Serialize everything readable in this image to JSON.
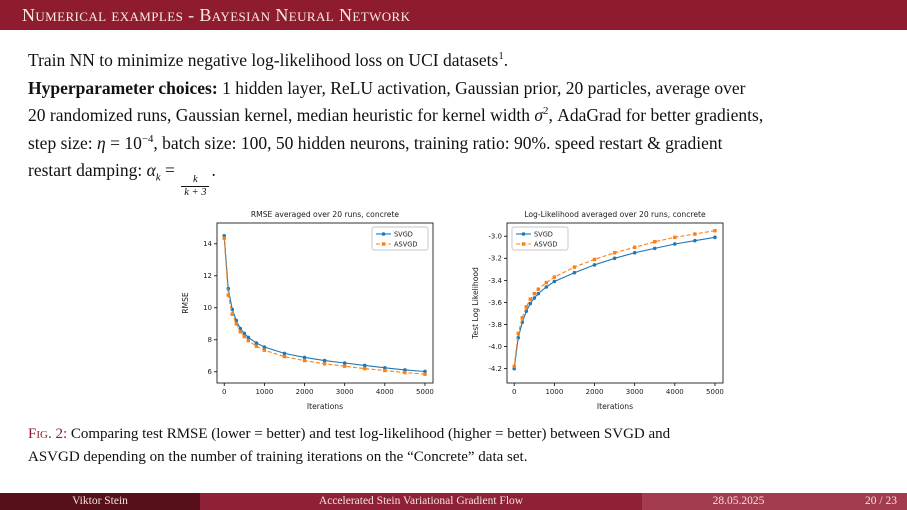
{
  "colors": {
    "structure": "#8e1c2e",
    "footer_author_bg": "#571019",
    "footer_title_bg": "#8e2136",
    "footer_date_bg": "#a33c4e",
    "svgd": "#1f77b4",
    "asvgd": "#ff7f0e"
  },
  "header": {
    "title": "Numerical examples - Bayesian Neural Network"
  },
  "body": {
    "line1": {
      "pre": "Train NN to minimize negative log-likelihood loss on UCI datasets",
      "sup": "1",
      "post": "."
    },
    "hyper": {
      "bold": "Hyperparameter choices:",
      "l1_rest": " 1 hidden layer, ReLU activation, Gaussian prior, 20 particles, average over",
      "l2_pre": "20 randomized runs, Gaussian kernel, median heuristic for kernel width ",
      "l2_sym": "σ",
      "l2_sup": "2",
      "l2_post": ", AdaGrad for better gradients,",
      "l3_pre": "step size: ",
      "l3_sym": "η",
      "l3_mid": " = 10",
      "l3_sup": "−4",
      "l3_post": ", batch size: 100, 50 hidden neurons, training ratio: 90%. speed restart & gradient",
      "l4_pre": "restart damping: ",
      "l4_sym": "α",
      "l4_sub": "k",
      "l4_eq": " = ",
      "frac_num": "k",
      "frac_den": "k + 3",
      "l4_post": "."
    }
  },
  "chart_data": [
    {
      "type": "line",
      "title": "RMSE averaged over 20 runs, concrete",
      "xlabel": "Iterations",
      "ylabel": "RMSE",
      "legend": "top-right",
      "grid": false,
      "xlim": [
        -180,
        5200
      ],
      "ylim": [
        5.3,
        15.3
      ],
      "xticks": [
        "0",
        "1000",
        "2000",
        "3000",
        "4000",
        "5000"
      ],
      "yticks": [
        "6",
        "8",
        "10",
        "12",
        "14"
      ],
      "x": [
        0,
        100,
        200,
        300,
        400,
        500,
        600,
        800,
        1000,
        1500,
        2000,
        2500,
        3000,
        3500,
        4000,
        4500,
        5000
      ],
      "series": [
        {
          "name": "SVGD",
          "color": "#1f77b4",
          "dash": false,
          "marker": "o",
          "values": [
            14.5,
            11.2,
            9.9,
            9.2,
            8.7,
            8.4,
            8.15,
            7.8,
            7.55,
            7.15,
            6.9,
            6.7,
            6.55,
            6.4,
            6.25,
            6.12,
            6.02
          ]
        },
        {
          "name": "ASVGD",
          "color": "#ff7f0e",
          "dash": true,
          "marker": "s",
          "values": [
            14.35,
            10.8,
            9.6,
            9.0,
            8.5,
            8.2,
            7.95,
            7.6,
            7.35,
            6.95,
            6.7,
            6.5,
            6.35,
            6.2,
            6.08,
            5.95,
            5.85
          ]
        }
      ]
    },
    {
      "type": "line",
      "title": "Log-Likelihood averaged over 20 runs, concrete",
      "xlabel": "Iterations",
      "ylabel": "Test Log Likelihood",
      "legend": "top-left",
      "grid": false,
      "xlim": [
        -180,
        5200
      ],
      "ylim": [
        -4.33,
        -2.88
      ],
      "xticks": [
        "0",
        "1000",
        "2000",
        "3000",
        "4000",
        "5000"
      ],
      "yticks": [
        "-4.2",
        "-4.0",
        "-3.8",
        "-3.6",
        "-3.4",
        "-3.2",
        "-3.0"
      ],
      "x": [
        0,
        100,
        200,
        300,
        400,
        500,
        600,
        800,
        1000,
        1500,
        2000,
        2500,
        3000,
        3500,
        4000,
        4500,
        5000
      ],
      "series": [
        {
          "name": "SVGD",
          "color": "#1f77b4",
          "dash": false,
          "marker": "o",
          "values": [
            -4.2,
            -3.92,
            -3.78,
            -3.68,
            -3.61,
            -3.56,
            -3.52,
            -3.46,
            -3.41,
            -3.33,
            -3.26,
            -3.2,
            -3.15,
            -3.11,
            -3.07,
            -3.04,
            -3.01
          ]
        },
        {
          "name": "ASVGD",
          "color": "#ff7f0e",
          "dash": true,
          "marker": "s",
          "values": [
            -4.18,
            -3.88,
            -3.74,
            -3.64,
            -3.57,
            -3.52,
            -3.48,
            -3.42,
            -3.37,
            -3.28,
            -3.21,
            -3.15,
            -3.1,
            -3.05,
            -3.01,
            -2.98,
            -2.95
          ]
        }
      ]
    }
  ],
  "caption": {
    "label": "Fig. 2:",
    "text1": " Comparing test RMSE (lower = better) and test log-likelihood (higher = better) between SVGD and",
    "text2": "ASVGD depending on the number of training iterations on the “Concrete” data set."
  },
  "footer": {
    "author": "Viktor Stein",
    "title": "Accelerated Stein Variational Gradient Flow",
    "date": "28.05.2025",
    "page": "20 / 23"
  }
}
